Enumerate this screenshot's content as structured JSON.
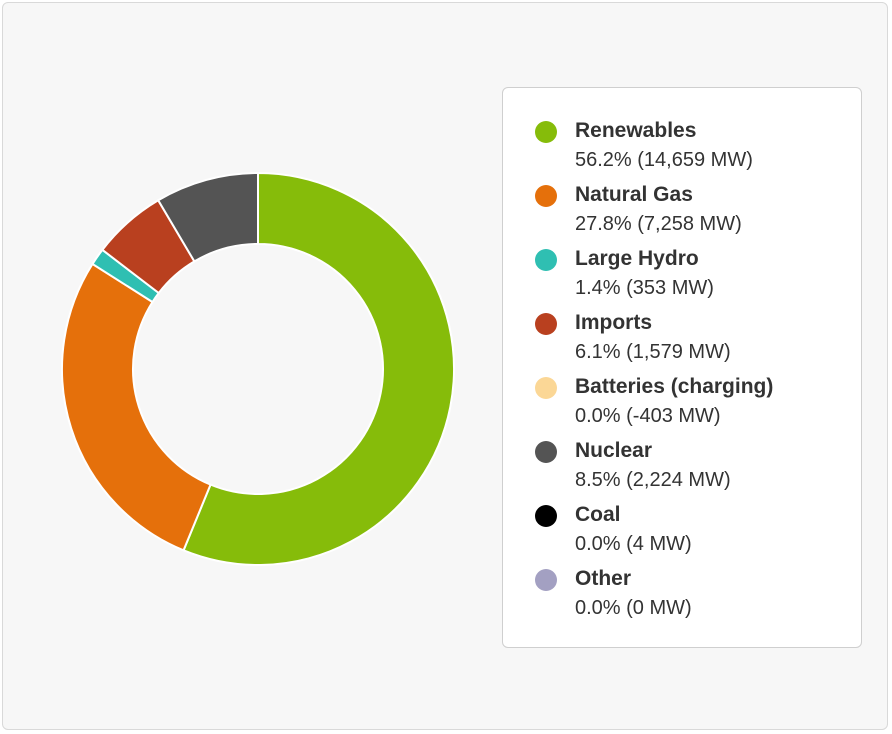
{
  "chart_data": {
    "type": "pie",
    "variant": "donut",
    "title": "",
    "legend_position": "right",
    "slices": [
      {
        "name": "Renewables",
        "percent": 56.2,
        "mw": 14659,
        "value_text": "56.2% (14,659 MW)",
        "color": "#86bc0a"
      },
      {
        "name": "Natural Gas",
        "percent": 27.8,
        "mw": 7258,
        "value_text": "27.8% (7,258 MW)",
        "color": "#e5700b"
      },
      {
        "name": "Large Hydro",
        "percent": 1.4,
        "mw": 353,
        "value_text": "1.4% (353 MW)",
        "color": "#2fbfb2"
      },
      {
        "name": "Imports",
        "percent": 6.1,
        "mw": 1579,
        "value_text": "6.1% (1,579 MW)",
        "color": "#b9401f"
      },
      {
        "name": "Batteries (charging)",
        "percent": 0.0,
        "mw": -403,
        "value_text": "0.0% (-403 MW)",
        "color": "#fbd796"
      },
      {
        "name": "Nuclear",
        "percent": 8.5,
        "mw": 2224,
        "value_text": "8.5% (2,224 MW)",
        "color": "#545454"
      },
      {
        "name": "Coal",
        "percent": 0.0,
        "mw": 4,
        "value_text": "0.0% (4 MW)",
        "color": "#000000"
      },
      {
        "name": "Other",
        "percent": 0.0,
        "mw": 0,
        "value_text": "0.0% (0 MW)",
        "color": "#a3a0c2"
      }
    ]
  }
}
